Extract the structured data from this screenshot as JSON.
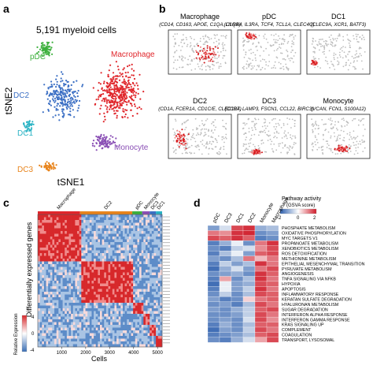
{
  "panels": {
    "a": {
      "label": "a",
      "title": "5,191 myeloid cells",
      "xlabel": "tSNE1",
      "ylabel": "tSNE2",
      "clusters": [
        {
          "name": "pDC",
          "color": "#3cb03c"
        },
        {
          "name": "Macrophage",
          "color": "#e0262b"
        },
        {
          "name": "DC2",
          "color": "#3b6fc4"
        },
        {
          "name": "DC1",
          "color": "#2ab3c4"
        },
        {
          "name": "DC3",
          "color": "#e8841c"
        },
        {
          "name": "Monocyte",
          "color": "#8a4fb5"
        }
      ]
    },
    "b": {
      "label": "b",
      "maps": [
        {
          "title": "Macrophage",
          "genes": "(CD14, CD163, APOE, C1QA, C1QB)"
        },
        {
          "title": "pDC",
          "genes": "(LILRA4, IL3RA, TCF4, TCL1A, CLEC4C)"
        },
        {
          "title": "DC1",
          "genes": "(CLEC9A, XCR1, BATF3)"
        },
        {
          "title": "DC2",
          "genes": "(CD1A, FCER1A, CD1C/E, CLEC10A)"
        },
        {
          "title": "DC3",
          "genes": "(CCR7, LAMP3, FSCN1, CCL22, BIRC3)"
        },
        {
          "title": "Monocyte",
          "genes": "(VCAN, FCN1, S100A12)"
        }
      ]
    },
    "c": {
      "label": "c",
      "column_groups": [
        "Macrophage",
        "DC2",
        "pDC",
        "Monocyte",
        "DC3",
        "DC1"
      ],
      "ylabel": "Differentially expressed genes",
      "xlabel": "Cells",
      "xticks": [
        "1000",
        "2000",
        "3000",
        "4000",
        "5000"
      ],
      "legend_title": "Relative Expression",
      "legend_ticks": [
        "4",
        "0",
        "-4"
      ]
    },
    "d": {
      "label": "d",
      "legend_title": "Pathway activity",
      "legend_subtitle": "(GSVA score)",
      "legend_ticks": [
        "-2",
        "0",
        "2"
      ],
      "columns": [
        "pDC",
        "DC3",
        "DC1",
        "DC2",
        "Monocyte",
        "Macrophage"
      ],
      "rows": [
        "PHOSPHATE METABOLISM",
        "OXIDATIVE PHOSPHORYLATION",
        "MYC TARGETS V1",
        "PROPANOATE METABOLISM",
        "XENOBIOTICS METABOLISM",
        "ROS DETOXIFICATION",
        "METHIONINE METABOLISM",
        "EPITHELIAL MESENCHYMAL TRANSITION",
        "PYRUVATE METABOLISM",
        "ANGIOGENESIS",
        "TNFA SIGNALING VIA NFKB",
        "HYPOXIA",
        "APOPTOSIS",
        "INFLAMMATORY RESPONSE",
        "KERATAN SULFATE DEGRADATION",
        "HYALURONAN METABOLISM",
        "SUGAR DEGRADATION",
        "INTERFERON ALPHA RESPONSE",
        "INTERFERON GAMMA RESPONSE",
        "KRAS SIGNALING UP",
        "COMPLEMENT",
        "COAGULATION",
        "TRANSPORT, LYSOSOMAL"
      ]
    }
  },
  "chart_data": [
    {
      "type": "scatter",
      "title": "5,191 myeloid cells",
      "xlabel": "tSNE1",
      "ylabel": "tSNE2",
      "total_cells": 5191,
      "series": [
        {
          "name": "pDC",
          "color": "#3cb03c"
        },
        {
          "name": "Macrophage",
          "color": "#e0262b"
        },
        {
          "name": "DC2",
          "color": "#3b6fc4"
        },
        {
          "name": "DC1",
          "color": "#2ab3c4"
        },
        {
          "name": "DC3",
          "color": "#e8841c"
        },
        {
          "name": "Monocyte",
          "color": "#8a4fb5"
        }
      ]
    },
    {
      "type": "heatmap",
      "xlabel": "Cells",
      "ylabel": "Differentially expressed genes",
      "column_groups": [
        "Macrophage",
        "DC2",
        "pDC",
        "Monocyte",
        "DC3",
        "DC1"
      ],
      "xticks": [
        1000,
        2000,
        3000,
        4000,
        5000
      ],
      "color_range": [
        -4,
        4
      ]
    },
    {
      "type": "heatmap",
      "title": "Pathway activity (GSVA score)",
      "columns": [
        "pDC",
        "DC3",
        "DC1",
        "DC2",
        "Monocyte",
        "Macrophage"
      ],
      "color_range": [
        -2,
        2
      ],
      "rows": [
        {
          "name": "PHOSPHATE METABOLISM",
          "values": [
            -1.2,
            -0.4,
            1.6,
            1.8,
            -1.0,
            -0.8
          ]
        },
        {
          "name": "OXIDATIVE PHOSPHORYLATION",
          "values": [
            1.2,
            1.0,
            1.8,
            1.9,
            -1.4,
            -1.2
          ]
        },
        {
          "name": "MYC TARGETS V1",
          "values": [
            1.6,
            1.4,
            1.8,
            1.4,
            -1.6,
            -1.4
          ]
        },
        {
          "name": "PROPANOATE METABOLISM",
          "values": [
            -1.6,
            -1.0,
            -0.2,
            -1.4,
            1.2,
            1.8
          ]
        },
        {
          "name": "XENOBIOTICS METABOLISM",
          "values": [
            -1.4,
            -1.6,
            -0.6,
            -0.4,
            1.0,
            1.6
          ]
        },
        {
          "name": "ROS DETOXIFICATION",
          "values": [
            -1.6,
            -0.8,
            -0.2,
            -1.2,
            1.4,
            1.6
          ]
        },
        {
          "name": "METHIONINE METABOLISM",
          "values": [
            -1.2,
            -1.4,
            -0.8,
            1.2,
            0.6,
            1.2
          ]
        },
        {
          "name": "EPITHELIAL MESENCHYMAL TRANSITION",
          "values": [
            -1.6,
            -0.6,
            -1.2,
            -0.8,
            1.8,
            1.2
          ]
        },
        {
          "name": "PYRUVATE METABOLISM",
          "values": [
            -1.8,
            -1.0,
            -0.4,
            -1.2,
            1.2,
            1.6
          ]
        },
        {
          "name": "ANGIOGENESIS",
          "values": [
            -1.4,
            -1.2,
            -1.0,
            -1.4,
            1.8,
            1.4
          ]
        },
        {
          "name": "TNFA SIGNALING VIA NFKB",
          "values": [
            -1.6,
            0.8,
            -1.4,
            -0.8,
            1.8,
            1.2
          ]
        },
        {
          "name": "HYPOXIA",
          "values": [
            -1.8,
            -0.2,
            -1.2,
            -1.0,
            1.6,
            1.4
          ]
        },
        {
          "name": "APOPTOSIS",
          "values": [
            -1.6,
            -0.2,
            -1.2,
            -0.6,
            1.8,
            1.2
          ]
        },
        {
          "name": "INFLAMMATORY RESPONSE",
          "values": [
            -1.4,
            -0.6,
            -1.4,
            -0.8,
            1.6,
            1.4
          ]
        },
        {
          "name": "KERATAN SULFATE DEGRADATION",
          "values": [
            -1.2,
            -1.6,
            -1.4,
            0.4,
            1.2,
            1.4
          ]
        },
        {
          "name": "HYALURONAN METABOLISM",
          "values": [
            -1.4,
            -1.2,
            -1.6,
            -0.8,
            1.6,
            1.2
          ]
        },
        {
          "name": "SUGAR DEGRADATION",
          "values": [
            -1.2,
            -1.4,
            -1.0,
            -0.6,
            1.4,
            1.6
          ]
        },
        {
          "name": "INTERFERON ALPHA RESPONSE",
          "values": [
            -1.4,
            -1.4,
            -1.2,
            -0.6,
            1.6,
            1.2
          ]
        },
        {
          "name": "INTERFERON GAMMA RESPONSE",
          "values": [
            -1.4,
            -1.2,
            -1.4,
            -0.4,
            1.6,
            1.0
          ]
        },
        {
          "name": "KRAS SIGNALING UP",
          "values": [
            -1.6,
            -1.0,
            -1.4,
            -0.8,
            1.4,
            1.4
          ]
        },
        {
          "name": "COMPLEMENT",
          "values": [
            -1.8,
            -1.2,
            -1.4,
            -0.6,
            1.6,
            1.2
          ]
        },
        {
          "name": "COAGULATION",
          "values": [
            -1.6,
            -1.4,
            -1.2,
            -0.8,
            1.4,
            1.6
          ]
        },
        {
          "name": "TRANSPORT, LYSOSOMAL",
          "values": [
            -1.4,
            -1.6,
            -1.0,
            -0.4,
            0.8,
            1.6
          ]
        }
      ]
    }
  ]
}
